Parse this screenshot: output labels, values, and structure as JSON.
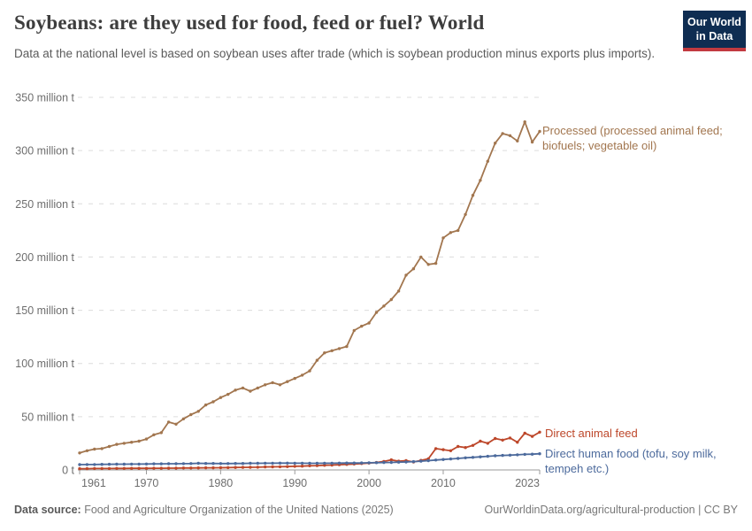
{
  "header": {
    "title": "Soybeans: are they used for food, feed or fuel? World",
    "subtitle": "Data at the national level is based on soybean uses after trade (which is soybean production minus exports plus imports).",
    "logo": {
      "line1": "Our World",
      "line2": "in Data",
      "bg_color": "#0f2d52",
      "stripe_color": "#c23a40"
    }
  },
  "chart_data": {
    "type": "line",
    "title": "Soybeans: are they used for food, feed or fuel? World",
    "xlabel": "",
    "ylabel": "",
    "xlim": [
      1961,
      2023
    ],
    "ylim": [
      0,
      350
    ],
    "grid": "horizontal-dashed",
    "legend_position": "right-of-line-end",
    "xticks": [
      1961,
      1970,
      1980,
      1990,
      2000,
      2010,
      2023
    ],
    "yticks": [
      0,
      50,
      100,
      150,
      200,
      250,
      300,
      350
    ],
    "ytick_labels": [
      "0 t",
      "50 million t",
      "100 million t",
      "150 million t",
      "200 million t",
      "250 million t",
      "300 million t",
      "350 million t"
    ],
    "x": [
      1961,
      1962,
      1963,
      1964,
      1965,
      1966,
      1967,
      1968,
      1969,
      1970,
      1971,
      1972,
      1973,
      1974,
      1975,
      1976,
      1977,
      1978,
      1979,
      1980,
      1981,
      1982,
      1983,
      1984,
      1985,
      1986,
      1987,
      1988,
      1989,
      1990,
      1991,
      1992,
      1993,
      1994,
      1995,
      1996,
      1997,
      1998,
      1999,
      2000,
      2001,
      2002,
      2003,
      2004,
      2005,
      2006,
      2007,
      2008,
      2009,
      2010,
      2011,
      2012,
      2013,
      2014,
      2015,
      2016,
      2017,
      2018,
      2019,
      2020,
      2021,
      2022,
      2023
    ],
    "unit": "million t",
    "series": [
      {
        "name": "Processed (processed animal feed; biofuels; vegetable oil)",
        "color": "#a2764f",
        "values": [
          16,
          18,
          19.5,
          20,
          22,
          24,
          25,
          26,
          27,
          29,
          33,
          35,
          45,
          43,
          48,
          52,
          55,
          61,
          64,
          68,
          71,
          75,
          77,
          74,
          77,
          80,
          82,
          80,
          83,
          86,
          89,
          93,
          103,
          110,
          112,
          114,
          116,
          131,
          135,
          138,
          148,
          154,
          160,
          168,
          183,
          189,
          200,
          193,
          194,
          218,
          223,
          225,
          240,
          258,
          272,
          290,
          307,
          316,
          314,
          309,
          327,
          308,
          318
        ]
      },
      {
        "name": "Direct animal feed",
        "color": "#bd472a",
        "values": [
          1.2,
          1.2,
          1.3,
          1.3,
          1.3,
          1.4,
          1.4,
          1.5,
          1.5,
          1.5,
          1.6,
          1.6,
          1.7,
          1.7,
          1.8,
          1.8,
          1.9,
          2,
          2,
          2.1,
          2.2,
          2.3,
          2.4,
          2.5,
          2.6,
          2.8,
          2.9,
          3,
          3.2,
          3.4,
          3.6,
          3.9,
          4.1,
          4.4,
          4.6,
          4.9,
          5.2,
          5.6,
          6,
          6.5,
          7,
          8,
          9.5,
          8.2,
          8.7,
          7.5,
          9,
          10.5,
          20,
          19,
          18,
          22,
          21,
          23,
          27,
          25,
          29.5,
          28,
          30,
          26,
          34.5,
          31.5,
          35.5
        ]
      },
      {
        "name": "Direct human food (tofu, soy milk, tempeh etc.)",
        "color": "#4c6a9c",
        "values": [
          5,
          5.1,
          5.1,
          5.2,
          5.3,
          5.4,
          5.4,
          5.5,
          5.5,
          5.6,
          5.7,
          5.7,
          5.8,
          5.8,
          5.9,
          6,
          6.2,
          6.1,
          6.1,
          6,
          6,
          6.1,
          6.1,
          6.2,
          6.2,
          6.3,
          6.3,
          6.4,
          6.4,
          6.3,
          6.3,
          6.2,
          6.2,
          6.3,
          6.3,
          6.4,
          6.5,
          6.5,
          6.6,
          6.7,
          6.8,
          7,
          7.1,
          7.3,
          7.5,
          7.8,
          8.2,
          8.7,
          9.3,
          9.8,
          10.3,
          10.8,
          11.4,
          11.8,
          12.3,
          12.8,
          13.3,
          13.6,
          13.9,
          14.2,
          14.6,
          14.8,
          15.2
        ]
      }
    ]
  },
  "footer": {
    "source_label": "Data source:",
    "source_text": " Food and Agriculture Organization of the United Nations (2025)",
    "link_text": "OurWorldinData.org/agricultural-production | CC BY"
  }
}
